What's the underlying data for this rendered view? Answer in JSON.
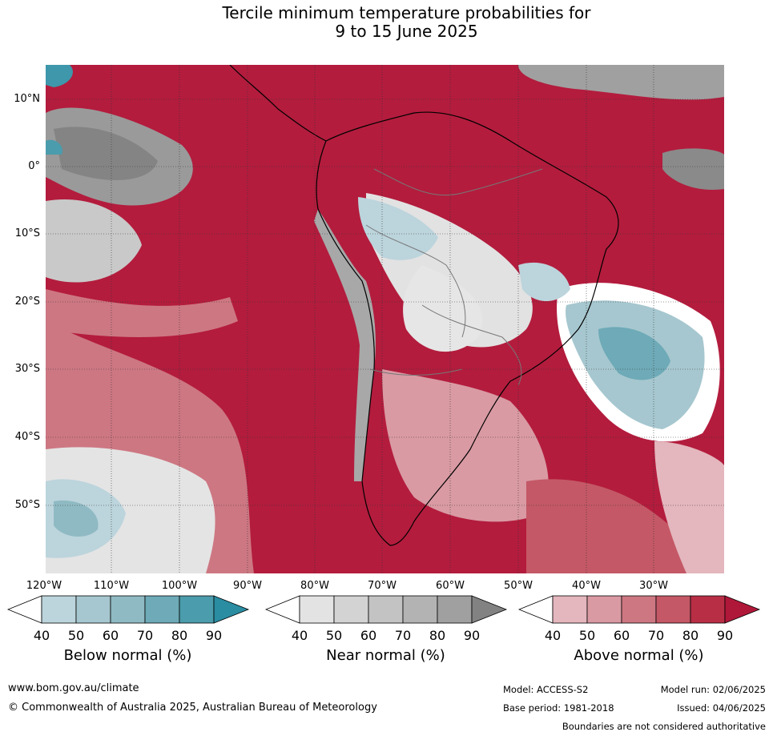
{
  "title_line1": "Tercile minimum temperature probabilities for",
  "title_line2": "9 to 15 June 2025",
  "lat_ticks": [
    "10°N",
    "0°",
    "10°S",
    "20°S",
    "30°S",
    "40°S",
    "50°S"
  ],
  "lon_ticks": [
    "120°W",
    "110°W",
    "100°W",
    "90°W",
    "80°W",
    "70°W",
    "60°W",
    "50°W",
    "40°W",
    "30°W"
  ],
  "legends": [
    {
      "name": "Below normal (%)",
      "ticks": [
        "40",
        "50",
        "60",
        "70",
        "80",
        "90"
      ],
      "colors": [
        "#bcd4dc",
        "#a6c7cf",
        "#8fbac3",
        "#6eaab7",
        "#4b9cac",
        "#2a8da2"
      ]
    },
    {
      "name": "Near normal (%)",
      "ticks": [
        "40",
        "50",
        "60",
        "70",
        "80",
        "90"
      ],
      "colors": [
        "#e3e3e3",
        "#d3d3d3",
        "#c3c3c3",
        "#b3b3b3",
        "#a0a0a0",
        "#828282"
      ]
    },
    {
      "name": "Above normal (%)",
      "ticks": [
        "40",
        "50",
        "60",
        "70",
        "80",
        "90"
      ],
      "colors": [
        "#e4b6bd",
        "#d99aa3",
        "#cd7782",
        "#c45866",
        "#b82e45",
        "#b0183a"
      ]
    }
  ],
  "footer": {
    "website": "www.bom.gov.au/climate",
    "copyright": "© Commonwealth of Australia 2025, Australian Bureau of Meteorology",
    "model": "Model: ACCESS-S2",
    "base_period": "Base period: 1981-2018",
    "model_run": "Model run: 02/06/2025",
    "issued": "Issued: 04/06/2025",
    "disclaimer": "Boundaries are not considered authoritative"
  }
}
